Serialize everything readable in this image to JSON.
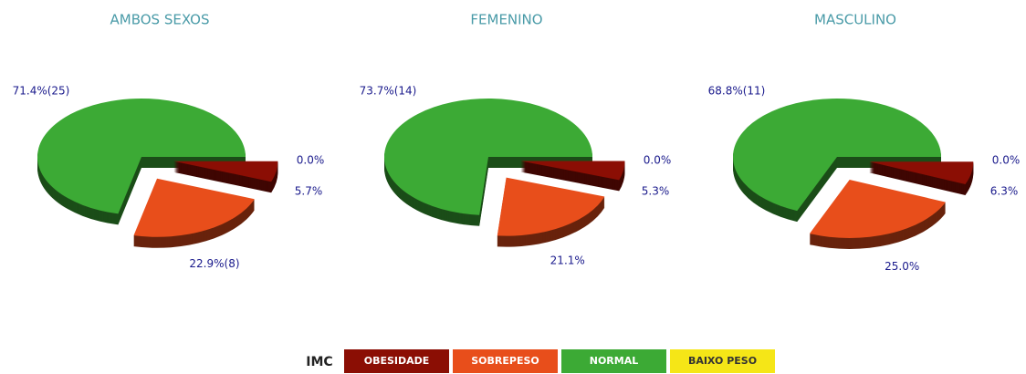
{
  "chart_data": [
    {
      "type": "pie",
      "title": "AMBOS SEXOS",
      "values": [
        5.7,
        22.9,
        71.4,
        0.0
      ],
      "value_labels": [
        "5.7%",
        "22.9%(8)",
        "71.4%(25)",
        "0.0%"
      ]
    },
    {
      "type": "pie",
      "title": "FEMENINO",
      "values": [
        5.3,
        21.1,
        73.7,
        0.0
      ],
      "value_labels": [
        "5.3%",
        "21.1%",
        "73.7%(14)",
        "0.0%"
      ]
    },
    {
      "type": "pie",
      "title": "MASCULINO",
      "values": [
        6.3,
        25.0,
        68.8,
        0.0
      ],
      "value_labels": [
        "6.3%",
        "25.0%",
        "68.8%(11)",
        "0.0%"
      ]
    }
  ],
  "legend": {
    "title": "IMC",
    "items": [
      {
        "name": "OBESIDADE",
        "color": "#8b0e04"
      },
      {
        "name": "SOBREPESO",
        "color": "#e84e1b"
      },
      {
        "name": "NORMAL",
        "color": "#3caa35"
      },
      {
        "name": "BAIXO PESO",
        "color": "#f5e617"
      }
    ]
  }
}
